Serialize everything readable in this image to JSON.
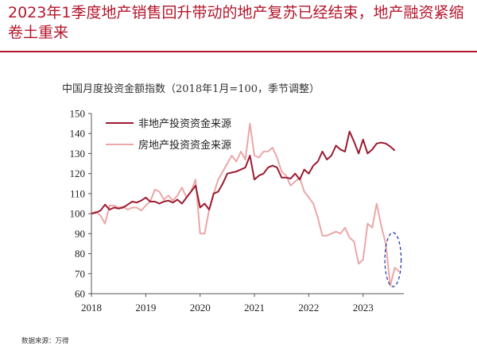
{
  "page": {
    "headline": "2023年1季度地产销售回升带动的地产复苏已经结束，地产融资紧缩卷土重来",
    "source": "数据来源：万得"
  },
  "colors": {
    "accent": "#b3162c",
    "series_non_real_estate": "#9b1b30",
    "series_real_estate": "#eba7a7",
    "highlight_ellipse": "#2a3fa8"
  },
  "chart_data": {
    "type": "line",
    "title": "中国月度投资金额指数（2018年1月=100，季节调整）",
    "xlabel": "",
    "ylabel": "",
    "ylim": [
      60,
      150
    ],
    "xlim": [
      2018.0,
      2023.75
    ],
    "yticks": [
      60,
      70,
      80,
      90,
      100,
      110,
      120,
      130,
      140,
      150
    ],
    "xticks": [
      2018,
      2019,
      2020,
      2021,
      2022,
      2023
    ],
    "grid": false,
    "legend_position": "top-left",
    "series": [
      {
        "name": "非地产投资资金来源",
        "color": "#9b1b30",
        "points": [
          [
            2018.0,
            100
          ],
          [
            2018.083,
            100.5
          ],
          [
            2018.167,
            101.5
          ],
          [
            2018.25,
            104.5
          ],
          [
            2018.333,
            102
          ],
          [
            2018.417,
            103
          ],
          [
            2018.5,
            102.5
          ],
          [
            2018.583,
            103
          ],
          [
            2018.667,
            104.5
          ],
          [
            2018.75,
            106
          ],
          [
            2018.833,
            105.5
          ],
          [
            2018.917,
            106.5
          ],
          [
            2019.0,
            108
          ],
          [
            2019.083,
            106
          ],
          [
            2019.167,
            106
          ],
          [
            2019.25,
            105
          ],
          [
            2019.333,
            106
          ],
          [
            2019.417,
            106.5
          ],
          [
            2019.5,
            105.5
          ],
          [
            2019.583,
            107
          ],
          [
            2019.667,
            105
          ],
          [
            2019.75,
            108
          ],
          [
            2019.833,
            111
          ],
          [
            2019.917,
            114
          ],
          [
            2020.0,
            103
          ],
          [
            2020.083,
            105
          ],
          [
            2020.167,
            102
          ],
          [
            2020.25,
            110
          ],
          [
            2020.333,
            111
          ],
          [
            2020.417,
            115
          ],
          [
            2020.5,
            120
          ],
          [
            2020.583,
            120.5
          ],
          [
            2020.667,
            121
          ],
          [
            2020.75,
            122
          ],
          [
            2020.833,
            123
          ],
          [
            2020.917,
            129
          ],
          [
            2021.0,
            117
          ],
          [
            2021.083,
            119
          ],
          [
            2021.167,
            120
          ],
          [
            2021.25,
            123
          ],
          [
            2021.333,
            124
          ],
          [
            2021.417,
            123
          ],
          [
            2021.5,
            118
          ],
          [
            2021.583,
            118
          ],
          [
            2021.667,
            117.5
          ],
          [
            2021.75,
            120
          ],
          [
            2021.833,
            117
          ],
          [
            2021.917,
            122
          ],
          [
            2022.0,
            120
          ],
          [
            2022.083,
            124
          ],
          [
            2022.167,
            126
          ],
          [
            2022.25,
            131
          ],
          [
            2022.333,
            127
          ],
          [
            2022.417,
            129
          ],
          [
            2022.5,
            134
          ],
          [
            2022.583,
            132
          ],
          [
            2022.667,
            131
          ],
          [
            2022.75,
            141
          ],
          [
            2022.833,
            136
          ],
          [
            2022.917,
            130
          ],
          [
            2023.0,
            137
          ],
          [
            2023.083,
            130
          ],
          [
            2023.167,
            132
          ],
          [
            2023.25,
            135
          ],
          [
            2023.333,
            135.5
          ],
          [
            2023.417,
            135
          ],
          [
            2023.5,
            133.5
          ],
          [
            2023.583,
            131.5
          ]
        ]
      },
      {
        "name": "房地产投资资金来源",
        "color": "#eba7a7",
        "points": [
          [
            2018.0,
            100
          ],
          [
            2018.083,
            101
          ],
          [
            2018.167,
            99
          ],
          [
            2018.25,
            95
          ],
          [
            2018.333,
            104
          ],
          [
            2018.417,
            104
          ],
          [
            2018.5,
            103
          ],
          [
            2018.583,
            103.5
          ],
          [
            2018.667,
            102
          ],
          [
            2018.75,
            103
          ],
          [
            2018.833,
            103
          ],
          [
            2018.917,
            101.5
          ],
          [
            2019.0,
            104
          ],
          [
            2019.083,
            106
          ],
          [
            2019.167,
            112
          ],
          [
            2019.25,
            111
          ],
          [
            2019.333,
            107
          ],
          [
            2019.417,
            109
          ],
          [
            2019.5,
            106.5
          ],
          [
            2019.583,
            109
          ],
          [
            2019.667,
            113
          ],
          [
            2019.75,
            108
          ],
          [
            2019.833,
            111
          ],
          [
            2019.917,
            117
          ],
          [
            2020.0,
            90
          ],
          [
            2020.083,
            90
          ],
          [
            2020.167,
            102
          ],
          [
            2020.25,
            110
          ],
          [
            2020.333,
            117
          ],
          [
            2020.417,
            121
          ],
          [
            2020.5,
            125
          ],
          [
            2020.583,
            129
          ],
          [
            2020.667,
            126
          ],
          [
            2020.75,
            131
          ],
          [
            2020.833,
            127
          ],
          [
            2020.917,
            145
          ],
          [
            2021.0,
            129
          ],
          [
            2021.083,
            128
          ],
          [
            2021.167,
            131
          ],
          [
            2021.25,
            131
          ],
          [
            2021.333,
            133
          ],
          [
            2021.417,
            128
          ],
          [
            2021.5,
            121
          ],
          [
            2021.583,
            119
          ],
          [
            2021.667,
            114
          ],
          [
            2021.75,
            116
          ],
          [
            2021.833,
            118
          ],
          [
            2021.917,
            111
          ],
          [
            2022.0,
            108
          ],
          [
            2022.083,
            105
          ],
          [
            2022.167,
            98
          ],
          [
            2022.25,
            89
          ],
          [
            2022.333,
            89
          ],
          [
            2022.417,
            90
          ],
          [
            2022.5,
            91
          ],
          [
            2022.583,
            90
          ],
          [
            2022.667,
            93
          ],
          [
            2022.75,
            88
          ],
          [
            2022.833,
            86
          ],
          [
            2022.917,
            75
          ],
          [
            2023.0,
            77
          ],
          [
            2023.083,
            95
          ],
          [
            2023.167,
            93
          ],
          [
            2023.25,
            105
          ],
          [
            2023.333,
            94
          ],
          [
            2023.417,
            85
          ],
          [
            2023.5,
            64
          ],
          [
            2023.583,
            73
          ],
          [
            2023.667,
            71
          ]
        ]
      }
    ],
    "annotations": [
      {
        "type": "ellipse",
        "style": "dashed",
        "x_center": 2023.55,
        "y_center": 77,
        "x_radius": 0.15,
        "y_radius": 13.5
      }
    ]
  }
}
